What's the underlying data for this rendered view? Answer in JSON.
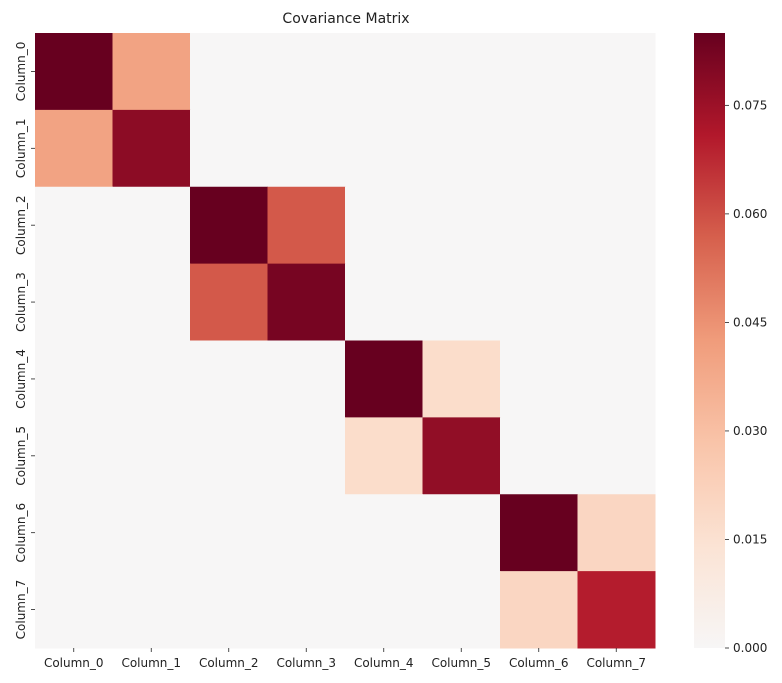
{
  "chart_data": {
    "type": "heatmap",
    "title": "Covariance Matrix",
    "xlabel": "",
    "ylabel": "",
    "x_labels": [
      "Column_0",
      "Column_1",
      "Column_2",
      "Column_3",
      "Column_4",
      "Column_5",
      "Column_6",
      "Column_7"
    ],
    "y_labels": [
      "Column_0",
      "Column_1",
      "Column_2",
      "Column_3",
      "Column_4",
      "Column_5",
      "Column_6",
      "Column_7"
    ],
    "values": [
      [
        0.085,
        0.04,
        0.0,
        0.0,
        0.0,
        0.0,
        0.0,
        0.0
      ],
      [
        0.04,
        0.078,
        0.0,
        0.0,
        0.0,
        0.0,
        0.0,
        0.0
      ],
      [
        0.0,
        0.0,
        0.085,
        0.058,
        0.0,
        0.0,
        0.0,
        0.0
      ],
      [
        0.0,
        0.0,
        0.058,
        0.082,
        0.0,
        0.0,
        0.0,
        0.0
      ],
      [
        0.0,
        0.0,
        0.0,
        0.0,
        0.085,
        0.017,
        0.0,
        0.0
      ],
      [
        0.0,
        0.0,
        0.0,
        0.0,
        0.017,
        0.077,
        0.0,
        0.0
      ],
      [
        0.0,
        0.0,
        0.0,
        0.0,
        0.0,
        0.0,
        0.085,
        0.02
      ],
      [
        0.0,
        0.0,
        0.0,
        0.0,
        0.0,
        0.0,
        0.02,
        0.07
      ]
    ],
    "colorbar": {
      "range": [
        0,
        0.085
      ],
      "ticks": [
        0.0,
        0.015,
        0.03,
        0.045,
        0.06,
        0.075
      ],
      "tick_labels": [
        "0.000",
        "0.015",
        "0.030",
        "0.045",
        "0.060",
        "0.075"
      ]
    },
    "colormap": "RdBu_r (white to dark red)",
    "colors": [
      "#f7f6f6",
      "#fbe3d4",
      "#f9c4a9",
      "#f09c7b",
      "#d6604d",
      "#b2182b",
      "#67001f"
    ],
    "grid": false,
    "legend": "colorbar right"
  }
}
